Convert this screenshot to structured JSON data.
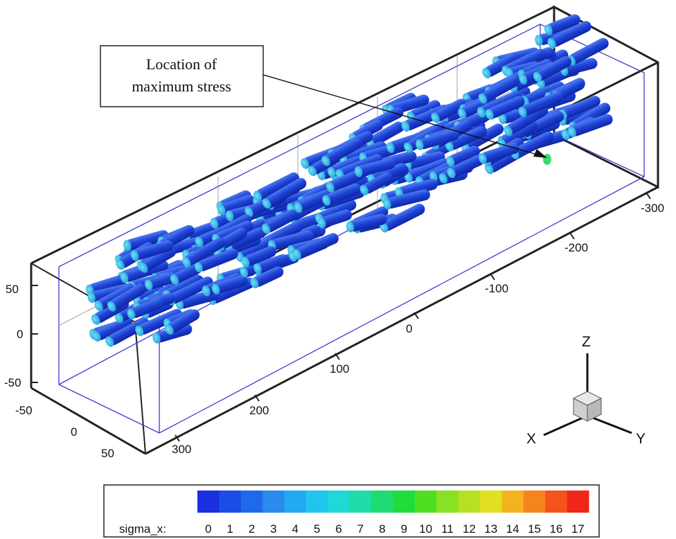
{
  "callout": {
    "line1": "Location of",
    "line2": "maximum stress"
  },
  "axes": {
    "x_ticks": [
      "-300",
      "-200",
      "-100",
      "0",
      "100",
      "200",
      "300"
    ],
    "y_ticks": [
      "-50",
      "0",
      "50"
    ],
    "z_ticks": [
      "50",
      "0",
      "-50"
    ]
  },
  "triad": {
    "x_label": "X",
    "y_label": "Y",
    "z_label": "Z"
  },
  "legend": {
    "variable": "sigma_x:",
    "levels": [
      "0",
      "1",
      "2",
      "3",
      "4",
      "5",
      "6",
      "7",
      "8",
      "9",
      "10",
      "11",
      "12",
      "13",
      "14",
      "15",
      "16",
      "17"
    ],
    "colors": [
      "#1a2fe0",
      "#1c4ce8",
      "#1f6aea",
      "#2a8bee",
      "#22a9f2",
      "#21c4ef",
      "#1ed9d6",
      "#1fdca8",
      "#1fdc72",
      "#20dc3c",
      "#4fde22",
      "#8ae022",
      "#b8e022",
      "#e2e022",
      "#f4b21e",
      "#f6841c",
      "#f4531b",
      "#f0261a"
    ]
  },
  "rods": {
    "body_color": "#1e3fd8",
    "cap_color": "#2ab6e6",
    "hot_cap_color": "#3ed870"
  }
}
